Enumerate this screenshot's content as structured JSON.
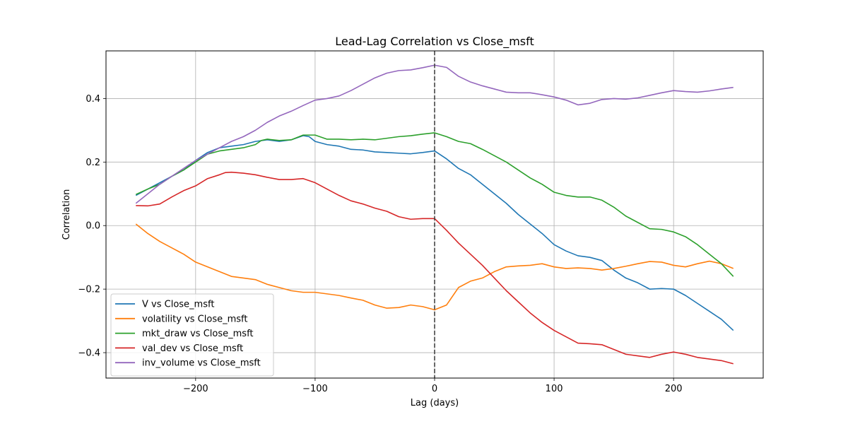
{
  "chart_data": {
    "type": "line",
    "title": "Lead-Lag Correlation vs Close_msft",
    "xlabel": "Lag (days)",
    "ylabel": "Correlation",
    "xlim": [
      -275,
      275
    ],
    "ylim": [
      -0.48,
      0.55
    ],
    "xticks": [
      -200,
      -100,
      0,
      100,
      200
    ],
    "xtick_labels": [
      "−200",
      "−100",
      "0",
      "100",
      "200"
    ],
    "yticks": [
      -0.4,
      -0.2,
      0.0,
      0.2,
      0.4
    ],
    "ytick_labels": [
      "−0.4",
      "−0.2",
      "0.0",
      "0.2",
      "0.4"
    ],
    "grid": true,
    "legend_position": "lower-left",
    "vline": {
      "x": 0,
      "style": "dashed",
      "color": "#444444"
    },
    "series": [
      {
        "name": "V vs Close_msft",
        "color": "#1f77b4",
        "points": [
          [
            -250,
            0.095
          ],
          [
            -240,
            0.115
          ],
          [
            -230,
            0.135
          ],
          [
            -220,
            0.155
          ],
          [
            -210,
            0.175
          ],
          [
            -200,
            0.205
          ],
          [
            -190,
            0.23
          ],
          [
            -180,
            0.245
          ],
          [
            -170,
            0.25
          ],
          [
            -160,
            0.255
          ],
          [
            -150,
            0.265
          ],
          [
            -140,
            0.27
          ],
          [
            -130,
            0.265
          ],
          [
            -120,
            0.27
          ],
          [
            -110,
            0.283
          ],
          [
            -105,
            0.28
          ],
          [
            -100,
            0.265
          ],
          [
            -90,
            0.255
          ],
          [
            -80,
            0.25
          ],
          [
            -70,
            0.24
          ],
          [
            -60,
            0.238
          ],
          [
            -50,
            0.232
          ],
          [
            -40,
            0.23
          ],
          [
            -30,
            0.228
          ],
          [
            -20,
            0.226
          ],
          [
            -10,
            0.23
          ],
          [
            0,
            0.235
          ],
          [
            10,
            0.21
          ],
          [
            20,
            0.18
          ],
          [
            30,
            0.16
          ],
          [
            40,
            0.13
          ],
          [
            50,
            0.1
          ],
          [
            60,
            0.07
          ],
          [
            70,
            0.035
          ],
          [
            80,
            0.005
          ],
          [
            90,
            -0.025
          ],
          [
            100,
            -0.06
          ],
          [
            110,
            -0.08
          ],
          [
            120,
            -0.095
          ],
          [
            130,
            -0.1
          ],
          [
            140,
            -0.11
          ],
          [
            150,
            -0.14
          ],
          [
            160,
            -0.165
          ],
          [
            170,
            -0.18
          ],
          [
            180,
            -0.2
          ],
          [
            190,
            -0.198
          ],
          [
            200,
            -0.2
          ],
          [
            210,
            -0.22
          ],
          [
            220,
            -0.245
          ],
          [
            230,
            -0.27
          ],
          [
            240,
            -0.295
          ],
          [
            250,
            -0.33
          ]
        ]
      },
      {
        "name": "volatility vs Close_msft",
        "color": "#ff7f0e",
        "points": [
          [
            -250,
            0.005
          ],
          [
            -240,
            -0.025
          ],
          [
            -230,
            -0.05
          ],
          [
            -220,
            -0.07
          ],
          [
            -210,
            -0.09
          ],
          [
            -200,
            -0.115
          ],
          [
            -190,
            -0.13
          ],
          [
            -180,
            -0.145
          ],
          [
            -170,
            -0.16
          ],
          [
            -160,
            -0.165
          ],
          [
            -150,
            -0.17
          ],
          [
            -140,
            -0.185
          ],
          [
            -130,
            -0.195
          ],
          [
            -120,
            -0.205
          ],
          [
            -110,
            -0.21
          ],
          [
            -100,
            -0.21
          ],
          [
            -90,
            -0.215
          ],
          [
            -80,
            -0.22
          ],
          [
            -70,
            -0.228
          ],
          [
            -60,
            -0.235
          ],
          [
            -50,
            -0.25
          ],
          [
            -40,
            -0.26
          ],
          [
            -30,
            -0.258
          ],
          [
            -20,
            -0.25
          ],
          [
            -10,
            -0.255
          ],
          [
            0,
            -0.265
          ],
          [
            10,
            -0.25
          ],
          [
            20,
            -0.195
          ],
          [
            30,
            -0.175
          ],
          [
            40,
            -0.165
          ],
          [
            50,
            -0.145
          ],
          [
            60,
            -0.13
          ],
          [
            70,
            -0.127
          ],
          [
            80,
            -0.125
          ],
          [
            90,
            -0.12
          ],
          [
            100,
            -0.13
          ],
          [
            110,
            -0.135
          ],
          [
            120,
            -0.133
          ],
          [
            130,
            -0.135
          ],
          [
            140,
            -0.14
          ],
          [
            150,
            -0.135
          ],
          [
            160,
            -0.128
          ],
          [
            170,
            -0.12
          ],
          [
            180,
            -0.113
          ],
          [
            190,
            -0.115
          ],
          [
            200,
            -0.125
          ],
          [
            210,
            -0.13
          ],
          [
            220,
            -0.12
          ],
          [
            230,
            -0.112
          ],
          [
            240,
            -0.12
          ],
          [
            250,
            -0.135
          ]
        ]
      },
      {
        "name": "mkt_draw vs Close_msft",
        "color": "#2ca02c",
        "points": [
          [
            -250,
            0.098
          ],
          [
            -240,
            0.115
          ],
          [
            -230,
            0.13
          ],
          [
            -220,
            0.155
          ],
          [
            -210,
            0.175
          ],
          [
            -200,
            0.2
          ],
          [
            -190,
            0.225
          ],
          [
            -180,
            0.235
          ],
          [
            -170,
            0.24
          ],
          [
            -160,
            0.245
          ],
          [
            -150,
            0.255
          ],
          [
            -145,
            0.268
          ],
          [
            -140,
            0.272
          ],
          [
            -130,
            0.268
          ],
          [
            -120,
            0.27
          ],
          [
            -110,
            0.285
          ],
          [
            -100,
            0.285
          ],
          [
            -90,
            0.272
          ],
          [
            -80,
            0.272
          ],
          [
            -70,
            0.27
          ],
          [
            -60,
            0.272
          ],
          [
            -50,
            0.27
          ],
          [
            -40,
            0.275
          ],
          [
            -30,
            0.28
          ],
          [
            -20,
            0.283
          ],
          [
            -10,
            0.288
          ],
          [
            0,
            0.292
          ],
          [
            10,
            0.28
          ],
          [
            20,
            0.265
          ],
          [
            30,
            0.258
          ],
          [
            40,
            0.24
          ],
          [
            50,
            0.22
          ],
          [
            60,
            0.2
          ],
          [
            70,
            0.175
          ],
          [
            80,
            0.15
          ],
          [
            90,
            0.13
          ],
          [
            100,
            0.105
          ],
          [
            110,
            0.095
          ],
          [
            120,
            0.09
          ],
          [
            130,
            0.09
          ],
          [
            140,
            0.08
          ],
          [
            150,
            0.058
          ],
          [
            160,
            0.03
          ],
          [
            170,
            0.01
          ],
          [
            180,
            -0.01
          ],
          [
            190,
            -0.012
          ],
          [
            200,
            -0.02
          ],
          [
            210,
            -0.035
          ],
          [
            220,
            -0.06
          ],
          [
            230,
            -0.09
          ],
          [
            240,
            -0.12
          ],
          [
            250,
            -0.16
          ]
        ]
      },
      {
        "name": "val_dev vs Close_msft",
        "color": "#d62728",
        "points": [
          [
            -250,
            0.063
          ],
          [
            -240,
            0.062
          ],
          [
            -230,
            0.068
          ],
          [
            -220,
            0.09
          ],
          [
            -210,
            0.11
          ],
          [
            -200,
            0.125
          ],
          [
            -190,
            0.148
          ],
          [
            -180,
            0.16
          ],
          [
            -175,
            0.167
          ],
          [
            -170,
            0.168
          ],
          [
            -160,
            0.165
          ],
          [
            -150,
            0.16
          ],
          [
            -140,
            0.152
          ],
          [
            -130,
            0.145
          ],
          [
            -120,
            0.145
          ],
          [
            -110,
            0.148
          ],
          [
            -100,
            0.135
          ],
          [
            -90,
            0.115
          ],
          [
            -80,
            0.095
          ],
          [
            -70,
            0.078
          ],
          [
            -60,
            0.068
          ],
          [
            -50,
            0.055
          ],
          [
            -40,
            0.045
          ],
          [
            -30,
            0.028
          ],
          [
            -20,
            0.02
          ],
          [
            -10,
            0.022
          ],
          [
            0,
            0.022
          ],
          [
            10,
            -0.015
          ],
          [
            20,
            -0.055
          ],
          [
            30,
            -0.09
          ],
          [
            40,
            -0.125
          ],
          [
            50,
            -0.165
          ],
          [
            60,
            -0.205
          ],
          [
            70,
            -0.24
          ],
          [
            80,
            -0.275
          ],
          [
            90,
            -0.305
          ],
          [
            100,
            -0.33
          ],
          [
            110,
            -0.35
          ],
          [
            120,
            -0.37
          ],
          [
            130,
            -0.372
          ],
          [
            140,
            -0.375
          ],
          [
            150,
            -0.39
          ],
          [
            160,
            -0.405
          ],
          [
            170,
            -0.41
          ],
          [
            180,
            -0.415
          ],
          [
            190,
            -0.405
          ],
          [
            200,
            -0.398
          ],
          [
            210,
            -0.405
          ],
          [
            220,
            -0.415
          ],
          [
            230,
            -0.42
          ],
          [
            240,
            -0.425
          ],
          [
            250,
            -0.435
          ]
        ]
      },
      {
        "name": "inv_volume vs Close_msft",
        "color": "#9467bd",
        "points": [
          [
            -250,
            0.07
          ],
          [
            -240,
            0.1
          ],
          [
            -230,
            0.13
          ],
          [
            -220,
            0.155
          ],
          [
            -210,
            0.18
          ],
          [
            -200,
            0.205
          ],
          [
            -190,
            0.225
          ],
          [
            -180,
            0.245
          ],
          [
            -170,
            0.265
          ],
          [
            -160,
            0.28
          ],
          [
            -150,
            0.3
          ],
          [
            -140,
            0.325
          ],
          [
            -130,
            0.345
          ],
          [
            -120,
            0.36
          ],
          [
            -110,
            0.378
          ],
          [
            -100,
            0.395
          ],
          [
            -90,
            0.4
          ],
          [
            -80,
            0.408
          ],
          [
            -70,
            0.425
          ],
          [
            -60,
            0.445
          ],
          [
            -50,
            0.465
          ],
          [
            -40,
            0.48
          ],
          [
            -30,
            0.488
          ],
          [
            -20,
            0.49
          ],
          [
            -10,
            0.497
          ],
          [
            0,
            0.505
          ],
          [
            10,
            0.498
          ],
          [
            20,
            0.47
          ],
          [
            30,
            0.452
          ],
          [
            40,
            0.44
          ],
          [
            50,
            0.43
          ],
          [
            60,
            0.42
          ],
          [
            70,
            0.418
          ],
          [
            80,
            0.418
          ],
          [
            90,
            0.412
          ],
          [
            100,
            0.405
          ],
          [
            110,
            0.395
          ],
          [
            120,
            0.38
          ],
          [
            130,
            0.385
          ],
          [
            140,
            0.397
          ],
          [
            150,
            0.4
          ],
          [
            160,
            0.398
          ],
          [
            170,
            0.402
          ],
          [
            180,
            0.41
          ],
          [
            190,
            0.418
          ],
          [
            200,
            0.425
          ],
          [
            210,
            0.422
          ],
          [
            220,
            0.42
          ],
          [
            230,
            0.424
          ],
          [
            240,
            0.43
          ],
          [
            250,
            0.435
          ]
        ]
      }
    ]
  }
}
